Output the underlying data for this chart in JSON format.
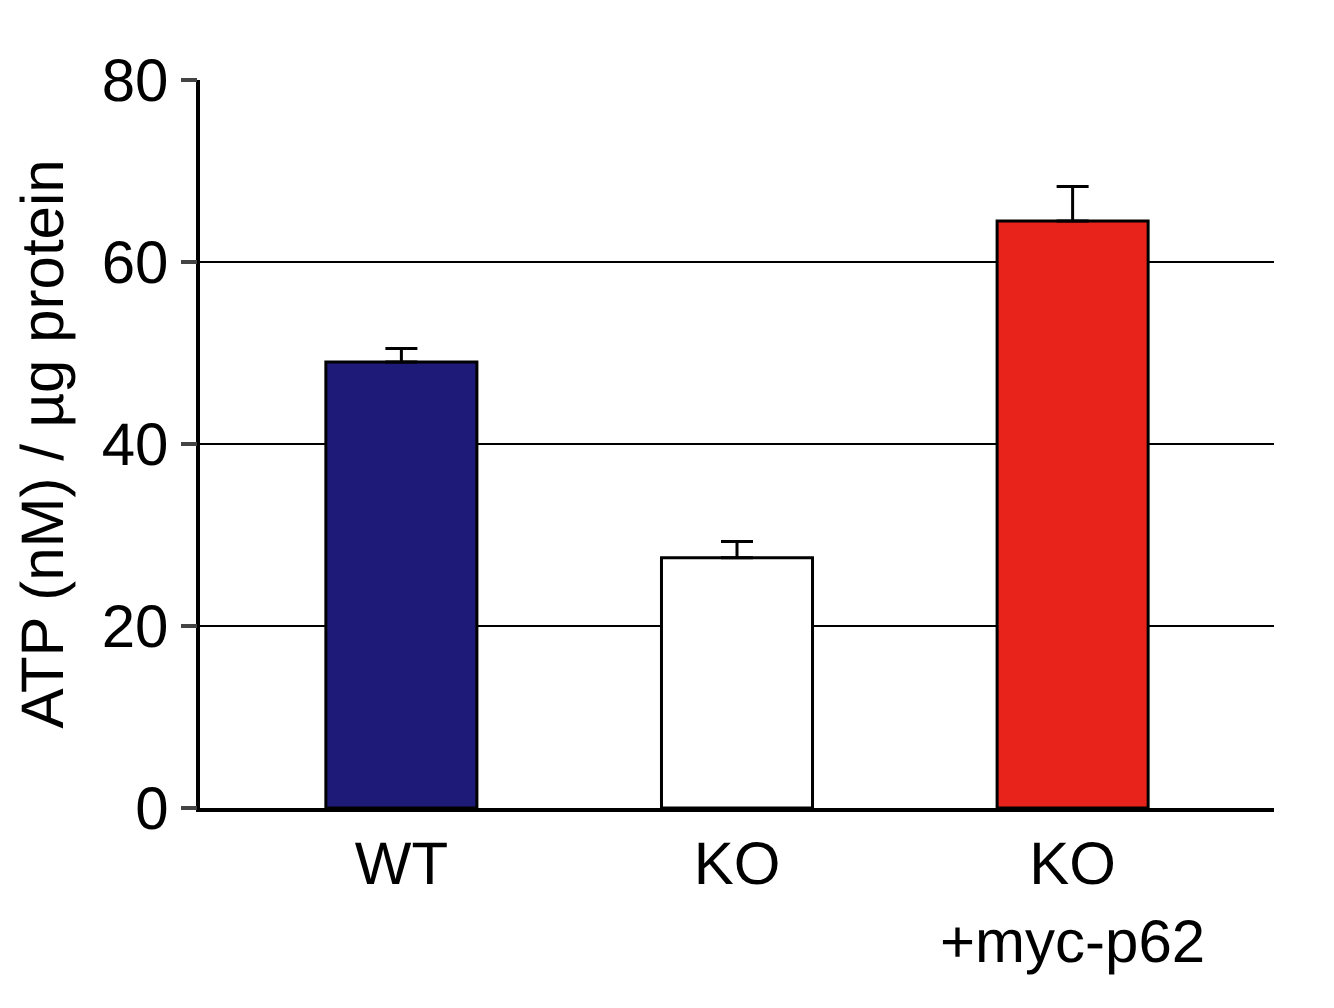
{
  "chart_data": {
    "type": "bar",
    "ylabel": "ATP (nM) / µg protein",
    "categories": [
      "WT",
      "KO",
      "KO\n+myc-p62"
    ],
    "values": [
      49,
      27.5,
      64.5
    ],
    "colors": [
      "#1e1a78",
      "#ffffff",
      "#e8231c"
    ],
    "errors": [
      [
        49,
        50.5
      ],
      [
        27.5,
        29.3
      ],
      [
        64.5,
        68.3
      ]
    ],
    "ylim": [
      0,
      80
    ],
    "yticks": [
      0,
      20,
      40,
      60,
      80
    ],
    "grid": "y"
  }
}
